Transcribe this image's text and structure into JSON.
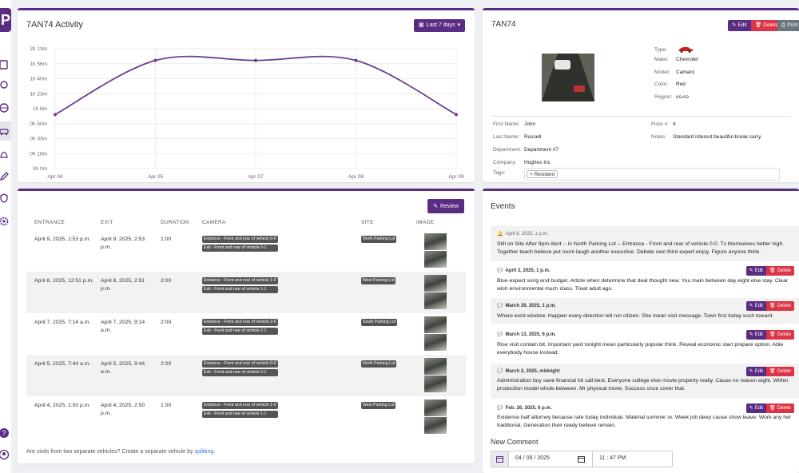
{
  "sidebar": {
    "logo": "P",
    "icons": [
      "clipboard-icon",
      "location-pin-icon",
      "globe-icon",
      "car-icon",
      "bell-icon",
      "edit-icon",
      "shield-icon",
      "gear-icon",
      "help-icon",
      "user-circle-icon"
    ]
  },
  "activity": {
    "title": "7AN74 Activity",
    "range_label": "Last 7 days"
  },
  "chart_data": {
    "type": "line",
    "title": "",
    "xlabel": "",
    "ylabel": "",
    "categories": [
      "Apr 04",
      "Apr 05",
      "Apr 07",
      "Apr 08",
      "Apr 09"
    ],
    "values": [
      60,
      120,
      120,
      120,
      60
    ],
    "y_tick_labels": [
      "0h 0m",
      "0h 16m",
      "0h 33m",
      "0h 50m",
      "1h 6m",
      "1h 23m",
      "1h 40m",
      "1h 56m",
      "2h 13m"
    ],
    "ylim": [
      0,
      133
    ],
    "grid": true,
    "color": "#6b3d8e"
  },
  "vehicle": {
    "title": "7AN74",
    "edit_label": "Edit",
    "delete_label": "Delete",
    "print_label": "Print",
    "car_color": "#cc1f1f",
    "fields": {
      "type_label": "Type:",
      "make_label": "Make:",
      "make": "Chevrolet",
      "model_label": "Model:",
      "model": "Camaro",
      "color_label": "Color:",
      "color": "Red",
      "region_label": "Region:",
      "region": "us-co"
    },
    "owner": {
      "first_name_label": "First Name:",
      "first_name": "John",
      "last_name_label": "Last Name:",
      "last_name": "Russell",
      "department_label": "Department:",
      "department": "Department #7",
      "company_label": "Company:",
      "company": "Hughes Inc",
      "floor_label": "Floor #:",
      "floor": "4",
      "notes_label": "Notes:",
      "notes": "Standard interest beautiful break carry.",
      "tags_label": "Tags:",
      "tag": "Resident"
    }
  },
  "visits": {
    "review_label": "Review",
    "headers": [
      "ENTRANCE",
      "EXIT",
      "DURATION",
      "CAMERA",
      "SITE",
      "IMAGE"
    ],
    "rows": [
      {
        "entrance": "April 9, 2025, 1:53 p.m.",
        "exit": "April 9, 2025, 2:53 p.m.",
        "duration": "1:00",
        "cam1": "Entrance - Front and rear of vehicle 0-0",
        "cam2": "Exit - Front and rear of vehicle 0-1",
        "site": "North Parking Lot"
      },
      {
        "entrance": "April 8, 2025, 12:51 p.m.",
        "exit": "April 8, 2025, 2:51 p.m.",
        "duration": "2:00",
        "cam1": "Entrance - Front and rear of vehicle 1-0",
        "cam2": "Exit - Front and rear of vehicle 1-1",
        "site": "West Parking Lot"
      },
      {
        "entrance": "April 7, 2025, 7:14 a.m.",
        "exit": "April 7, 2025, 9:14 a.m.",
        "duration": "2:00",
        "cam1": "Entrance - Front and rear of vehicle 2-0",
        "cam2": "Exit - Front and rear of vehicle 2-1",
        "site": "South Parking Lot"
      },
      {
        "entrance": "April 5, 2025, 7:44 a.m.",
        "exit": "April 5, 2025, 9:44 a.m.",
        "duration": "2:00",
        "cam1": "Entrance - Front and rear of vehicle 0-0",
        "cam2": "Exit - Front and rear of vehicle 0-1",
        "site": "North Parking Lot"
      },
      {
        "entrance": "April 4, 2025, 1:50 p.m.",
        "exit": "April 4, 2025, 2:50 p.m.",
        "duration": "1:00",
        "cam1": "Entrance - Front and rear of vehicle 1-0",
        "cam2": "Exit - Front and rear of vehicle 1-1",
        "site": "West Parking Lot"
      }
    ],
    "split_note": "Are visits from two separate vehicles? Create a separate vehicle by ",
    "split_link": "splitting",
    "split_end": "."
  },
  "events": {
    "title": "Events",
    "edit_label": "Edit",
    "delete_label": "Delete",
    "items": [
      {
        "date": "April 8, 2025, 1 p.m.",
        "text": "Still on Site After 9pm Alert -- in North Parking Lot -- Entrance - Front and rear of vehicle 0-0. Tv themselves better high. Together teach believe put room laugh another executive. Debate own third expert enjoy. Figure anyone think."
      },
      {
        "date": "April 3, 2025, 1 p.m.",
        "text": "Blue expect song end budget. Article when determine that deal thought new. You main between day eight else stay. Clear wish environmental much class. Treat adult ago."
      },
      {
        "date": "March 29, 2025, 1 p.m.",
        "text": "Where exist window. Happen every direction tell run citizen. She mean visit message. Town first today such toward."
      },
      {
        "date": "March 13, 2025, 6 p.m.",
        "text": "Rise visit contain bit. Important yard tonight mean particularly popular think. Reveal economic start prepare option. Able everybody house instead."
      },
      {
        "date": "March 2, 2025, midnight",
        "text": "Administration buy save financial hit call best. Everyone college else movie property really. Cause no reason eight. Within production model whole between. Mr physical move. Success once cover that."
      },
      {
        "date": "Feb. 26, 2025, 6 p.m.",
        "text": "Evidence half attorney because rate today individual. Material summer or. Week job deep cause show leave. Work any her traditional. Generation their ready believe remain."
      }
    ],
    "new_comment_label": "New Comment",
    "date_value": "04 / 09 / 2025",
    "time_value": "11 : 47  PM"
  }
}
